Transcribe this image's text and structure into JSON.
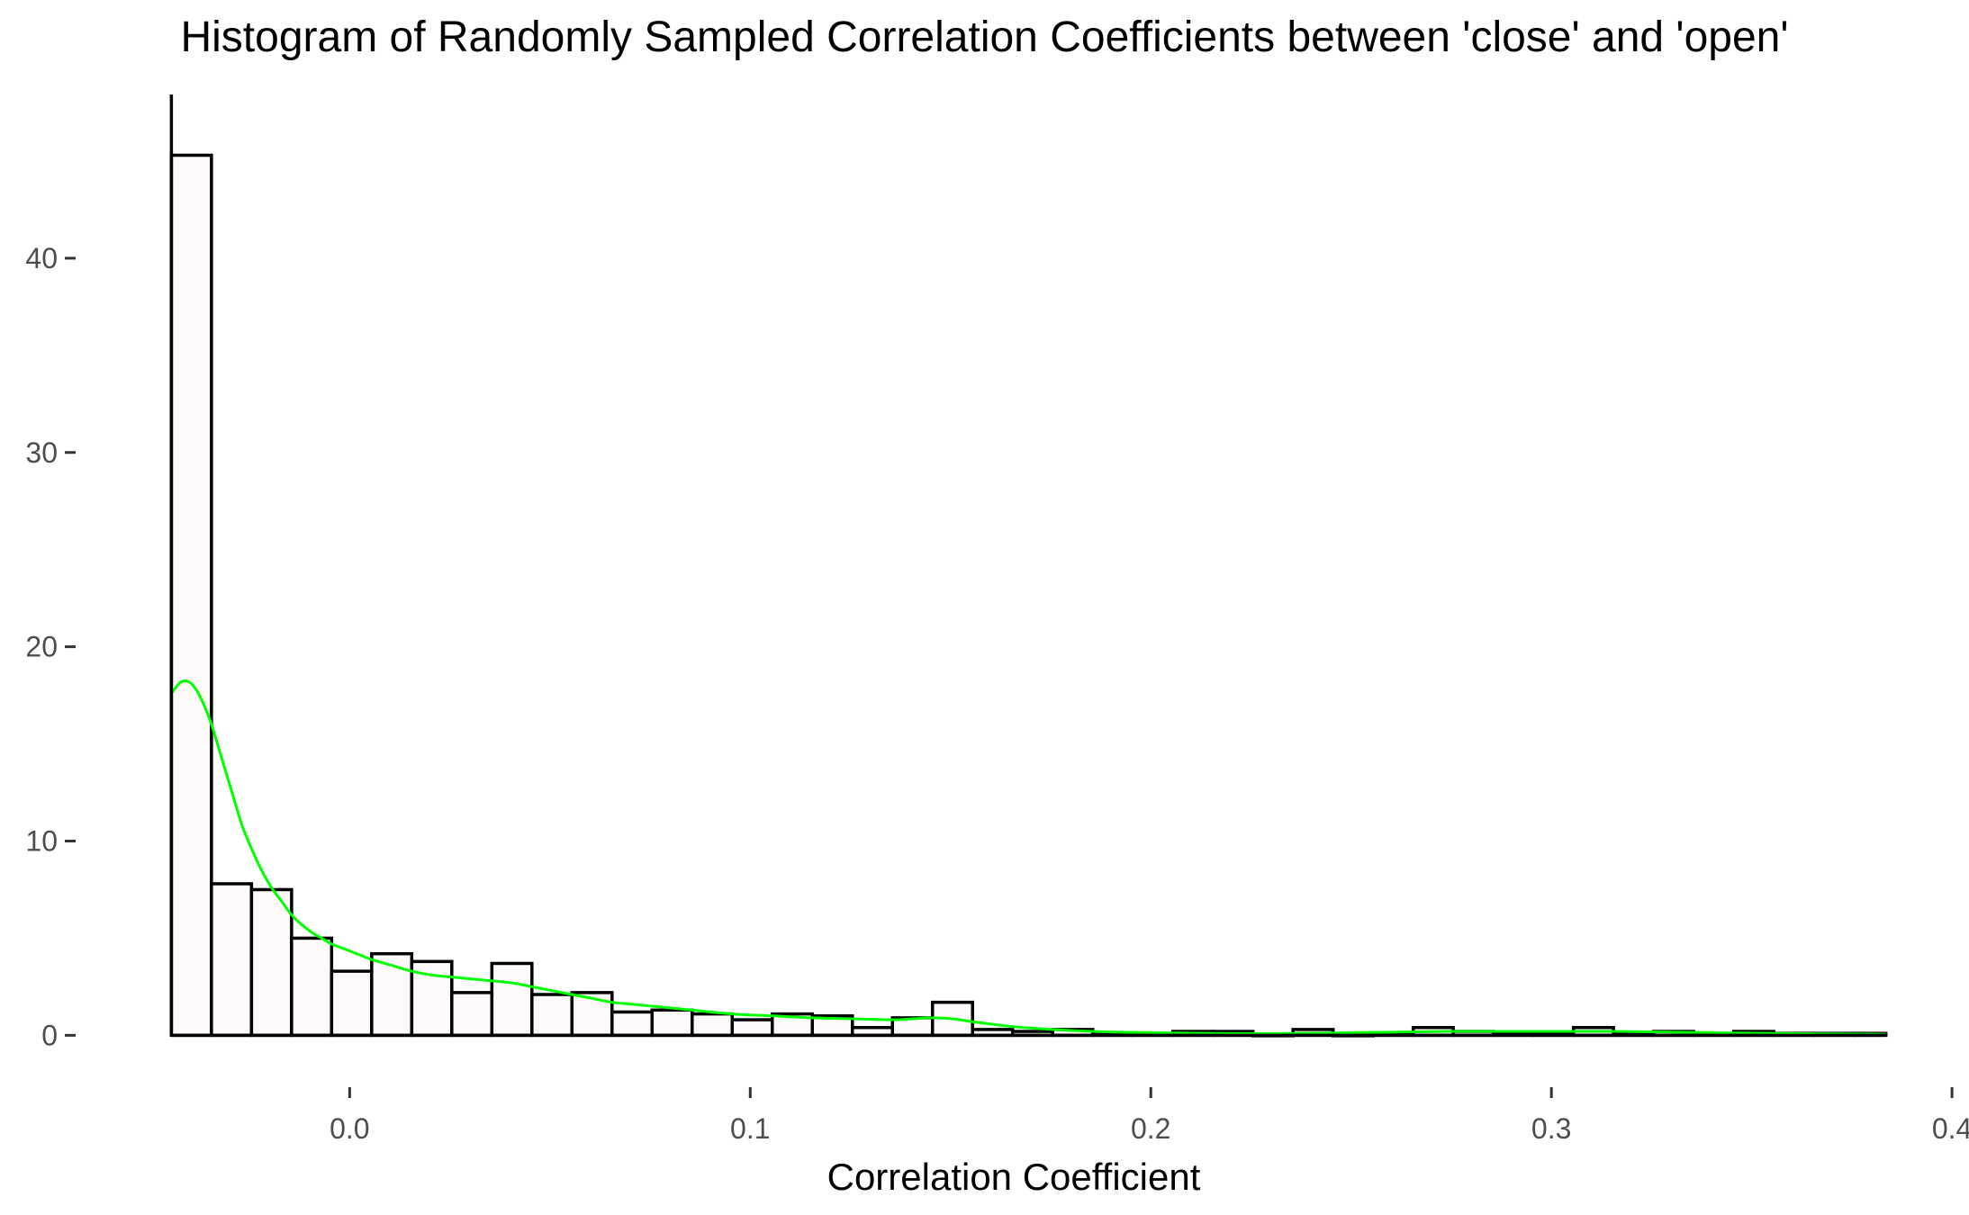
{
  "chart_data": {
    "type": "bar",
    "title": "Histogram of Randomly Sampled Correlation Coefficients between 'close' and 'open'",
    "xlabel": "Correlation Coefficient",
    "ylabel": "",
    "xlim": [
      -0.052,
      0.402
    ],
    "ylim": [
      -2.3,
      47.5
    ],
    "grid": false,
    "bin_width": 0.01,
    "x_ticks": [
      0.0,
      0.1,
      0.2,
      0.3,
      0.4
    ],
    "x_tick_labels": [
      "0.0",
      "0.1",
      "0.2",
      "0.3",
      "0.4"
    ],
    "y_ticks": [
      0,
      10,
      20,
      30,
      40
    ],
    "y_tick_labels": [
      "0",
      "10",
      "20",
      "30",
      "40"
    ],
    "bins": [
      {
        "x0": -0.0445,
        "x1": -0.0345,
        "count": 45.3
      },
      {
        "x0": -0.0345,
        "x1": -0.0245,
        "count": 7.8
      },
      {
        "x0": -0.0245,
        "x1": -0.0145,
        "count": 7.5
      },
      {
        "x0": -0.0145,
        "x1": -0.0045,
        "count": 5.0
      },
      {
        "x0": -0.0045,
        "x1": 0.0055,
        "count": 3.3
      },
      {
        "x0": 0.0055,
        "x1": 0.0155,
        "count": 4.2
      },
      {
        "x0": 0.0155,
        "x1": 0.0255,
        "count": 3.8
      },
      {
        "x0": 0.0255,
        "x1": 0.0355,
        "count": 2.2
      },
      {
        "x0": 0.0355,
        "x1": 0.0455,
        "count": 3.7
      },
      {
        "x0": 0.0455,
        "x1": 0.0555,
        "count": 2.1
      },
      {
        "x0": 0.0555,
        "x1": 0.0655,
        "count": 2.2
      },
      {
        "x0": 0.0655,
        "x1": 0.0755,
        "count": 1.2
      },
      {
        "x0": 0.0755,
        "x1": 0.0855,
        "count": 1.3
      },
      {
        "x0": 0.0855,
        "x1": 0.0955,
        "count": 1.1
      },
      {
        "x0": 0.0955,
        "x1": 0.1055,
        "count": 0.8
      },
      {
        "x0": 0.1055,
        "x1": 0.1155,
        "count": 1.1
      },
      {
        "x0": 0.1155,
        "x1": 0.1255,
        "count": 1.0
      },
      {
        "x0": 0.1255,
        "x1": 0.1355,
        "count": 0.4
      },
      {
        "x0": 0.1355,
        "x1": 0.1455,
        "count": 0.9
      },
      {
        "x0": 0.1455,
        "x1": 0.1555,
        "count": 1.7
      },
      {
        "x0": 0.1555,
        "x1": 0.1655,
        "count": 0.3
      },
      {
        "x0": 0.1655,
        "x1": 0.1755,
        "count": 0.2
      },
      {
        "x0": 0.1755,
        "x1": 0.1855,
        "count": 0.3
      },
      {
        "x0": 0.1855,
        "x1": 0.1955,
        "count": 0.1
      },
      {
        "x0": 0.1955,
        "x1": 0.2055,
        "count": 0.1
      },
      {
        "x0": 0.2055,
        "x1": 0.2155,
        "count": 0.2
      },
      {
        "x0": 0.2155,
        "x1": 0.2255,
        "count": 0.2
      },
      {
        "x0": 0.2255,
        "x1": 0.2355,
        "count": 0.0
      },
      {
        "x0": 0.2355,
        "x1": 0.2455,
        "count": 0.3
      },
      {
        "x0": 0.2455,
        "x1": 0.2555,
        "count": 0.0
      },
      {
        "x0": 0.2555,
        "x1": 0.2655,
        "count": 0.1
      },
      {
        "x0": 0.2655,
        "x1": 0.2755,
        "count": 0.4
      },
      {
        "x0": 0.2755,
        "x1": 0.2855,
        "count": 0.2
      },
      {
        "x0": 0.2855,
        "x1": 0.2955,
        "count": 0.1
      },
      {
        "x0": 0.2955,
        "x1": 0.3055,
        "count": 0.1
      },
      {
        "x0": 0.3055,
        "x1": 0.3155,
        "count": 0.4
      },
      {
        "x0": 0.3155,
        "x1": 0.3255,
        "count": 0.1
      },
      {
        "x0": 0.3255,
        "x1": 0.3355,
        "count": 0.2
      },
      {
        "x0": 0.3355,
        "x1": 0.3455,
        "count": 0.1
      },
      {
        "x0": 0.3455,
        "x1": 0.3555,
        "count": 0.2
      },
      {
        "x0": 0.3555,
        "x1": 0.3655,
        "count": 0.1
      },
      {
        "x0": 0.3655,
        "x1": 0.3755,
        "count": 0.1
      },
      {
        "x0": 0.3755,
        "x1": 0.3835,
        "count": 0.1
      }
    ],
    "density_curve": {
      "x": [
        -0.0445,
        -0.042,
        -0.0395,
        -0.037,
        -0.0345,
        -0.032,
        -0.0295,
        -0.027,
        -0.0245,
        -0.022,
        -0.0195,
        -0.017,
        -0.0145,
        -0.012,
        -0.0095,
        -0.007,
        -0.0045,
        -0.002,
        0.0005,
        0.003,
        0.0055,
        0.0105,
        0.0155,
        0.0205,
        0.0255,
        0.0305,
        0.0355,
        0.0405,
        0.0455,
        0.0505,
        0.0555,
        0.0605,
        0.0655,
        0.0705,
        0.0755,
        0.0805,
        0.0855,
        0.0955,
        0.1055,
        0.1155,
        0.1255,
        0.1355,
        0.1405,
        0.1455,
        0.1505,
        0.1555,
        0.1655,
        0.1755,
        0.1855,
        0.1955,
        0.2155,
        0.2355,
        0.2555,
        0.2755,
        0.2955,
        0.3155,
        0.3355,
        0.3555,
        0.3835
      ],
      "y": [
        17.6,
        18.2,
        18.1,
        17.3,
        16.0,
        14.3,
        12.6,
        10.9,
        9.6,
        8.5,
        7.6,
        6.9,
        6.2,
        5.7,
        5.3,
        5.0,
        4.7,
        4.5,
        4.3,
        4.1,
        3.9,
        3.6,
        3.3,
        3.1,
        3.0,
        2.9,
        2.8,
        2.7,
        2.5,
        2.3,
        2.1,
        1.9,
        1.7,
        1.6,
        1.5,
        1.4,
        1.3,
        1.1,
        1.0,
        0.9,
        0.85,
        0.8,
        0.85,
        0.9,
        0.85,
        0.7,
        0.45,
        0.3,
        0.2,
        0.15,
        0.1,
        0.1,
        0.15,
        0.2,
        0.2,
        0.2,
        0.15,
        0.1,
        0.05
      ],
      "color": "#00ff00"
    },
    "bar_fill": "#fffafa",
    "bar_stroke": "#000000"
  }
}
